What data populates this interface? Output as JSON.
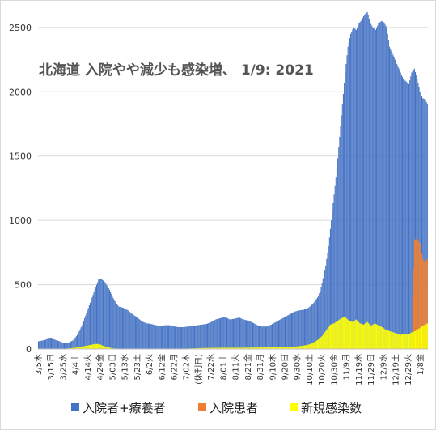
{
  "chart_data": {
    "type": "bar",
    "title": "北海道 入院やや減少も感染増、 1/9: 2021",
    "ylim": [
      0,
      2650
    ],
    "y_ticks": [
      0,
      500,
      1000,
      1500,
      2000,
      2500
    ],
    "grid": "horizontal",
    "legend_position": "bottom",
    "x_tick_labels": [
      "3/5木",
      "3/15日",
      "3/25水",
      "4/4土",
      "4/14火",
      "4/24金",
      "5/03日",
      "5/13水",
      "5/23土",
      "6/2火",
      "6/12金",
      "6/22月",
      "7/02木",
      "(休刊日)",
      "7/22水",
      "8/01土",
      "8/11火",
      "8/21金",
      "8/31月",
      "9/10木",
      "9/20日",
      "9/30水",
      "10/10土",
      "10/20火",
      "10/30金",
      "11/9月",
      "11/19木",
      "11/29日",
      "12/9水",
      "12/19土",
      "12/29火",
      "1/8金"
    ],
    "series": [
      {
        "name": "入院者+療養者",
        "color": "#4472C4",
        "points": [
          [
            0,
            60
          ],
          [
            7,
            70
          ],
          [
            12,
            85
          ],
          [
            17,
            75
          ],
          [
            23,
            60
          ],
          [
            28,
            45
          ],
          [
            33,
            50
          ],
          [
            38,
            70
          ],
          [
            43,
            120
          ],
          [
            48,
            200
          ],
          [
            53,
            300
          ],
          [
            58,
            400
          ],
          [
            62,
            480
          ],
          [
            65,
            540
          ],
          [
            68,
            545
          ],
          [
            72,
            520
          ],
          [
            77,
            460
          ],
          [
            82,
            380
          ],
          [
            87,
            330
          ],
          [
            92,
            320
          ],
          [
            97,
            300
          ],
          [
            102,
            270
          ],
          [
            107,
            245
          ],
          [
            112,
            215
          ],
          [
            117,
            200
          ],
          [
            122,
            195
          ],
          [
            127,
            185
          ],
          [
            132,
            180
          ],
          [
            137,
            185
          ],
          [
            142,
            185
          ],
          [
            147,
            175
          ],
          [
            152,
            170
          ],
          [
            157,
            170
          ],
          [
            162,
            175
          ],
          [
            167,
            180
          ],
          [
            172,
            185
          ],
          [
            177,
            190
          ],
          [
            182,
            195
          ],
          [
            187,
            210
          ],
          [
            192,
            230
          ],
          [
            197,
            240
          ],
          [
            202,
            250
          ],
          [
            207,
            230
          ],
          [
            212,
            235
          ],
          [
            217,
            245
          ],
          [
            222,
            230
          ],
          [
            227,
            220
          ],
          [
            232,
            205
          ],
          [
            237,
            185
          ],
          [
            242,
            175
          ],
          [
            247,
            175
          ],
          [
            252,
            190
          ],
          [
            257,
            210
          ],
          [
            262,
            230
          ],
          [
            267,
            250
          ],
          [
            272,
            270
          ],
          [
            277,
            290
          ],
          [
            282,
            300
          ],
          [
            287,
            305
          ],
          [
            292,
            320
          ],
          [
            297,
            350
          ],
          [
            302,
            400
          ],
          [
            305,
            450
          ],
          [
            308,
            550
          ],
          [
            311,
            650
          ],
          [
            314,
            800
          ],
          [
            317,
            1000
          ],
          [
            320,
            1200
          ],
          [
            323,
            1400
          ],
          [
            326,
            1650
          ],
          [
            329,
            1900
          ],
          [
            332,
            2150
          ],
          [
            335,
            2350
          ],
          [
            338,
            2450
          ],
          [
            341,
            2500
          ],
          [
            344,
            2480
          ],
          [
            347,
            2530
          ],
          [
            350,
            2560
          ],
          [
            353,
            2600
          ],
          [
            356,
            2620
          ],
          [
            359,
            2540
          ],
          [
            362,
            2500
          ],
          [
            365,
            2480
          ],
          [
            368,
            2530
          ],
          [
            371,
            2550
          ],
          [
            374,
            2540
          ],
          [
            377,
            2500
          ],
          [
            380,
            2350
          ],
          [
            383,
            2300
          ],
          [
            386,
            2250
          ],
          [
            389,
            2200
          ],
          [
            392,
            2150
          ],
          [
            395,
            2100
          ],
          [
            398,
            2080
          ],
          [
            401,
            2060
          ],
          [
            404,
            2150
          ],
          [
            407,
            2180
          ],
          [
            410,
            2100
          ],
          [
            413,
            2000
          ],
          [
            416,
            1950
          ],
          [
            419,
            1940
          ],
          [
            421,
            1900
          ]
        ]
      },
      {
        "name": "入院患者",
        "color": "#ED7D31",
        "points": [
          [
            0,
            0
          ],
          [
            404,
            0
          ],
          [
            405,
            400
          ],
          [
            407,
            850
          ],
          [
            410,
            860
          ],
          [
            413,
            820
          ],
          [
            416,
            700
          ],
          [
            419,
            680
          ],
          [
            421,
            700
          ]
        ]
      },
      {
        "name": "新規感染数",
        "color": "#FFFF00",
        "points": [
          [
            0,
            3
          ],
          [
            30,
            3
          ],
          [
            40,
            10
          ],
          [
            48,
            20
          ],
          [
            55,
            30
          ],
          [
            62,
            40
          ],
          [
            66,
            38
          ],
          [
            70,
            25
          ],
          [
            75,
            15
          ],
          [
            80,
            5
          ],
          [
            90,
            2
          ],
          [
            150,
            2
          ],
          [
            160,
            3
          ],
          [
            180,
            8
          ],
          [
            200,
            10
          ],
          [
            220,
            10
          ],
          [
            240,
            12
          ],
          [
            260,
            15
          ],
          [
            280,
            20
          ],
          [
            290,
            30
          ],
          [
            295,
            40
          ],
          [
            300,
            60
          ],
          [
            304,
            80
          ],
          [
            308,
            110
          ],
          [
            312,
            150
          ],
          [
            316,
            190
          ],
          [
            320,
            200
          ],
          [
            324,
            220
          ],
          [
            328,
            240
          ],
          [
            332,
            250
          ],
          [
            336,
            220
          ],
          [
            340,
            210
          ],
          [
            344,
            230
          ],
          [
            348,
            200
          ],
          [
            352,
            190
          ],
          [
            356,
            210
          ],
          [
            360,
            180
          ],
          [
            364,
            200
          ],
          [
            368,
            185
          ],
          [
            372,
            170
          ],
          [
            376,
            150
          ],
          [
            380,
            140
          ],
          [
            384,
            130
          ],
          [
            388,
            120
          ],
          [
            392,
            110
          ],
          [
            396,
            120
          ],
          [
            400,
            110
          ],
          [
            404,
            130
          ],
          [
            408,
            140
          ],
          [
            412,
            160
          ],
          [
            416,
            180
          ],
          [
            421,
            200
          ]
        ]
      }
    ]
  }
}
